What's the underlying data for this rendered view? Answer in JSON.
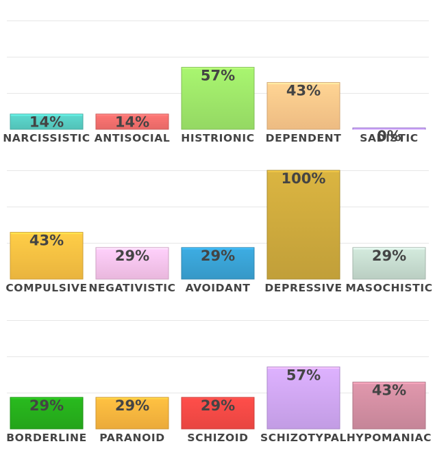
{
  "chart_data": [
    {
      "type": "bar",
      "ylim": [
        0,
        100
      ],
      "grid": true,
      "categories": [
        "NARCISSISTIC",
        "ANTISOCIAL",
        "HISTRIONIC",
        "DEPENDENT",
        "SADISTIC"
      ],
      "values": [
        14,
        14,
        57,
        43,
        0
      ],
      "value_labels": [
        "14%",
        "14%",
        "57%",
        "43%",
        "0%"
      ],
      "colors": [
        "#58cfc5",
        "#f7706e",
        "#9fe86a",
        "#ffc98c",
        "#b18cf0"
      ]
    },
    {
      "type": "bar",
      "ylim": [
        0,
        100
      ],
      "grid": true,
      "categories": [
        "COMPULSIVE",
        "NEGATIVISTIC",
        "AVOIDANT",
        "DEPRESSIVE",
        "MASOCHISTIC"
      ],
      "values": [
        43,
        29,
        29,
        100,
        29
      ],
      "value_labels": [
        "43%",
        "29%",
        "29%",
        "100%",
        "29%"
      ],
      "colors": [
        "#fbc243",
        "#fbc5ee",
        "#3aa3d6",
        "#cfab3d",
        "#c8ded1"
      ]
    },
    {
      "type": "bar",
      "ylim": [
        0,
        100
      ],
      "grid": true,
      "categories": [
        "BORDERLINE",
        "PARANOID",
        "SCHIZOID",
        "SCHIZOTYPAL",
        "HYPOMANIAC"
      ],
      "values": [
        29,
        29,
        29,
        57,
        43
      ],
      "value_labels": [
        "29%",
        "29%",
        "29%",
        "57%",
        "43%"
      ],
      "colors": [
        "#27b01c",
        "#fdb73e",
        "#f94a46",
        "#d1a8f5",
        "#d48fa3"
      ]
    }
  ]
}
